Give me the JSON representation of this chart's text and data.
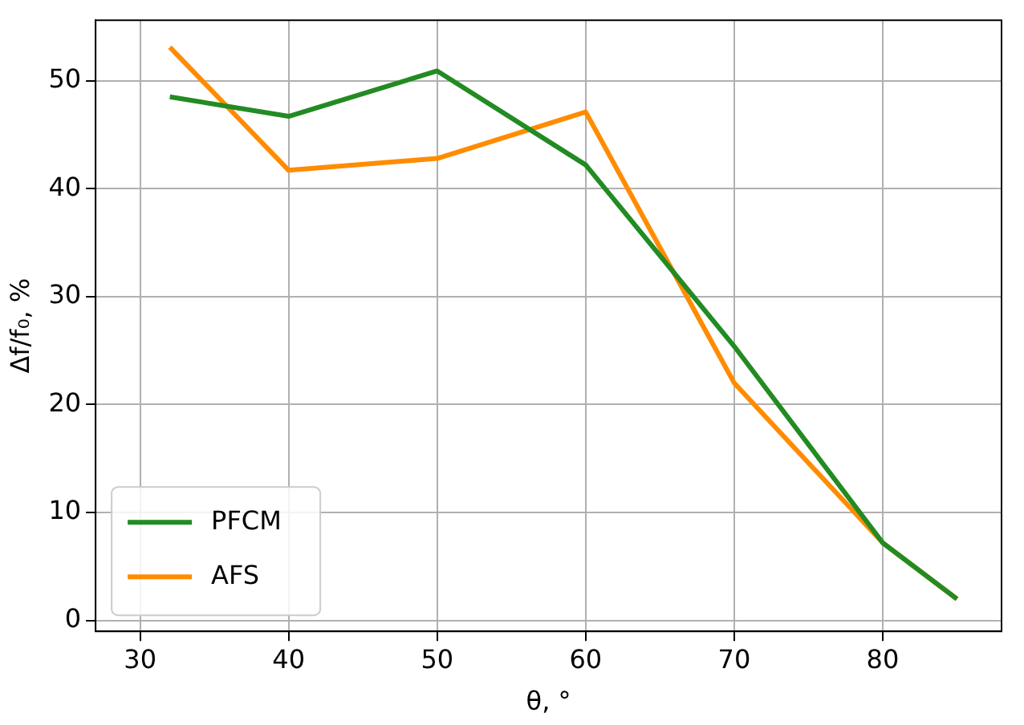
{
  "chart_data": {
    "type": "line",
    "xlabel": "θ, °",
    "ylabel": "Δf/f₀, %",
    "series": [
      {
        "name": "PFCM",
        "color": "#228b22",
        "x": [
          32,
          40,
          50,
          60,
          70,
          80,
          85
        ],
        "values": [
          48.5,
          46.7,
          50.9,
          42.2,
          25.4,
          7.2,
          2
        ]
      },
      {
        "name": "AFS",
        "color": "#ff8c00",
        "x": [
          32,
          40,
          50,
          60,
          70,
          80,
          85
        ],
        "values": [
          53.1,
          41.7,
          42.8,
          47.1,
          22,
          7.2,
          2
        ]
      }
    ],
    "xlim": [
      27,
      88
    ],
    "xticks": [
      30,
      40,
      50,
      60,
      70,
      80
    ],
    "ylim": [
      -1,
      55.6
    ],
    "yticks": [
      0,
      10,
      20,
      30,
      40,
      50
    ],
    "grid": true,
    "legend": "bottom left",
    "marker": "none",
    "line_style": "solid"
  }
}
